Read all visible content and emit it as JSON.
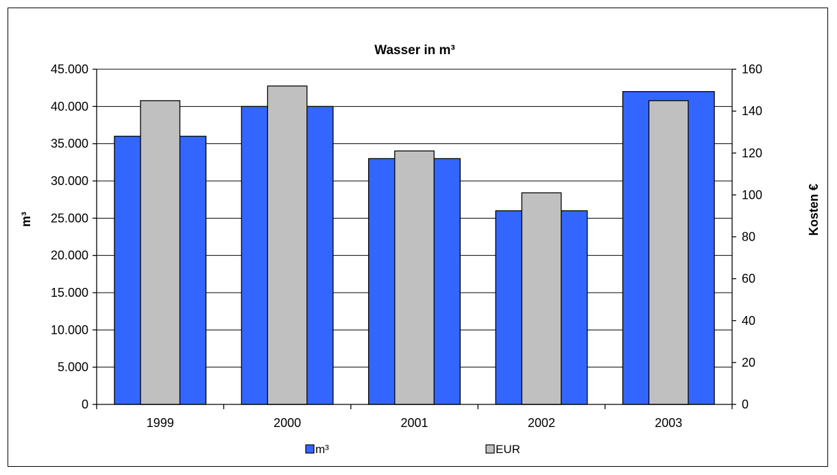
{
  "chart_data": {
    "type": "bar",
    "title": "Wasser in m³",
    "categories": [
      "1999",
      "2000",
      "2001",
      "2002",
      "2003"
    ],
    "series": [
      {
        "name": "m³",
        "axis": "left",
        "color": "#3366ff",
        "values": [
          36000,
          40000,
          33000,
          26000,
          42000
        ]
      },
      {
        "name": "EUR",
        "axis": "right",
        "color": "#c0c0c0",
        "values": [
          145,
          152,
          121,
          101,
          145
        ]
      }
    ],
    "ylabel": "m³",
    "y2label": "Kosten €",
    "ylim": [
      0,
      45000
    ],
    "y2lim": [
      0,
      160
    ],
    "yticks": [
      "0",
      "5.000",
      "10.000",
      "15.000",
      "20.000",
      "25.000",
      "30.000",
      "35.000",
      "40.000",
      "45.000"
    ],
    "y2ticks": [
      "0",
      "20",
      "40",
      "60",
      "80",
      "100",
      "120",
      "140",
      "160"
    ],
    "grid": true,
    "legend": "bottom"
  }
}
